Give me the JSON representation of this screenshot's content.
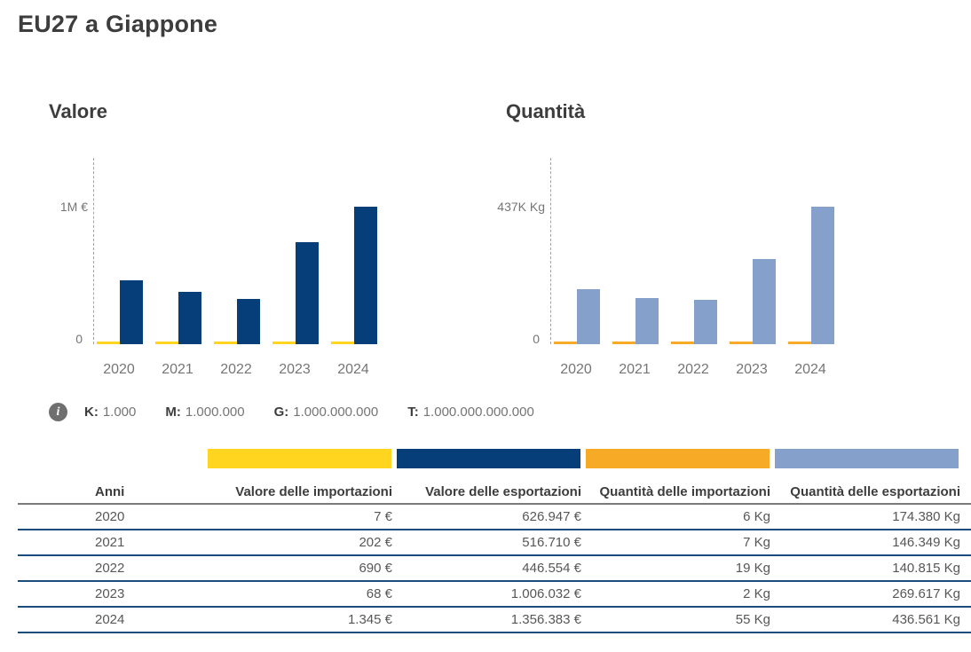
{
  "page": {
    "title": "EU27 a Giappone"
  },
  "chart_data": [
    {
      "type": "bar",
      "title": "Valore",
      "categories": [
        "2020",
        "2021",
        "2022",
        "2023",
        "2024"
      ],
      "series": [
        {
          "name": "Valore delle importazioni",
          "color": "#FFD51F",
          "values": [
            7,
            202,
            690,
            68,
            1345
          ]
        },
        {
          "name": "Valore delle esportazioni",
          "color": "#053E79",
          "values": [
            626947,
            516710,
            446554,
            1006032,
            1356383
          ]
        }
      ],
      "unit": "€",
      "ylim": [
        0,
        1356383
      ],
      "y_top_label": "1M €",
      "y_zero_label": "0",
      "grid": "off",
      "legend_position": "table-header"
    },
    {
      "type": "bar",
      "title": "Quantità",
      "categories": [
        "2020",
        "2021",
        "2022",
        "2023",
        "2024"
      ],
      "series": [
        {
          "name": "Quantità delle importazioni",
          "color": "#F6AA26",
          "values": [
            6,
            7,
            19,
            2,
            55
          ]
        },
        {
          "name": "Quantità delle esportazioni",
          "color": "#85A1CB",
          "values": [
            174380,
            146349,
            140815,
            269617,
            436561
          ]
        }
      ],
      "unit": "Kg",
      "ylim": [
        0,
        436561
      ],
      "y_top_label": "437K Kg",
      "y_zero_label": "0",
      "grid": "off",
      "legend_position": "table-header"
    }
  ],
  "prefix_legend": {
    "items": [
      {
        "key": "K:",
        "value": "1.000"
      },
      {
        "key": "M:",
        "value": "1.000.000"
      },
      {
        "key": "G:",
        "value": "1.000.000.000"
      },
      {
        "key": "T:",
        "value": "1.000.000.000.000"
      }
    ]
  },
  "table": {
    "swatch_colors": [
      "#FFD51F",
      "#053E79",
      "#F6AA26",
      "#85A1CB"
    ],
    "columns": [
      "Anni",
      "Valore delle importazioni",
      "Valore delle esportazioni",
      "Quantità delle importazioni",
      "Quantità delle esportazioni"
    ],
    "rows": [
      [
        "2020",
        "7 €",
        "626.947 €",
        "6 Kg",
        "174.380 Kg"
      ],
      [
        "2021",
        "202 €",
        "516.710 €",
        "7 Kg",
        "146.349 Kg"
      ],
      [
        "2022",
        "690 €",
        "446.554 €",
        "19 Kg",
        "140.815 Kg"
      ],
      [
        "2023",
        "68 €",
        "1.006.032 €",
        "2 Kg",
        "269.617 Kg"
      ],
      [
        "2024",
        "1.345 €",
        "1.356.383 €",
        "55 Kg",
        "436.561 Kg"
      ]
    ]
  }
}
